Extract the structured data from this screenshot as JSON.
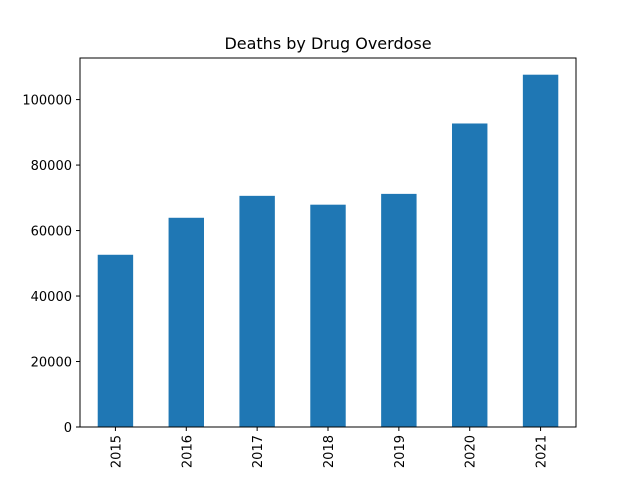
{
  "chart_data": {
    "type": "bar",
    "title": "Deaths by Drug Overdose",
    "xlabel": "",
    "ylabel": "",
    "categories": [
      "2015",
      "2016",
      "2017",
      "2018",
      "2019",
      "2020",
      "2021"
    ],
    "values": [
      52600,
      63900,
      70600,
      67900,
      71200,
      92700,
      107600
    ],
    "ylim": [
      0,
      112700
    ],
    "yticks": [
      0,
      20000,
      40000,
      60000,
      80000,
      100000
    ],
    "ytick_labels": [
      "0",
      "20000",
      "40000",
      "60000",
      "80000",
      "100000"
    ],
    "grid": false,
    "legend": "none",
    "bar_color": "#1f77b4"
  }
}
